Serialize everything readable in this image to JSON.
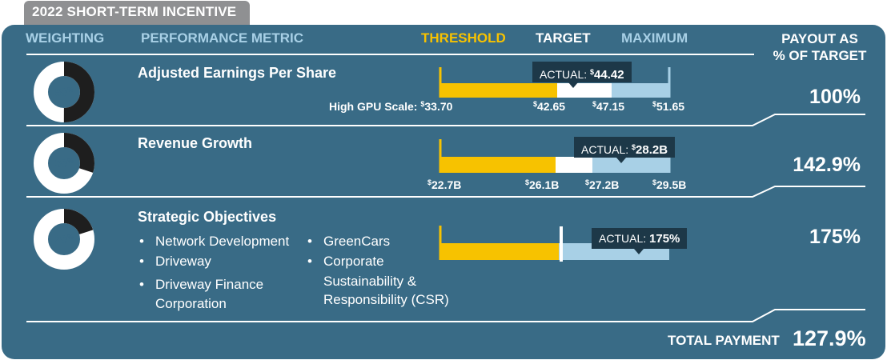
{
  "title": "2022 SHORT-TERM INCENTIVE",
  "headers": {
    "weighting": "WEIGHTING",
    "metric": "PERFORMANCE METRIC",
    "threshold": "THRESHOLD",
    "target": "TARGET",
    "maximum": "MAXIMUM",
    "payout_line1": "PAYOUT AS",
    "payout_line2": "% OF TARGET"
  },
  "colors": {
    "panel": "#396b86",
    "threshold": "#f7c200",
    "target": "#ffffff",
    "maximum": "#a8d0e6",
    "donut_dark": "#1e1e1e",
    "actual_box": "#1d3848"
  },
  "rows": [
    {
      "weight_label": "50",
      "metric": "Adjusted Earnings Per Share",
      "scale_label": "High GPU Scale:",
      "scale_value": "33.70",
      "actual_label": "ACTUAL:",
      "actual_value": "44.42",
      "payout": "100%"
    },
    {
      "weight_label": "30",
      "metric": "Revenue Growth",
      "actual_label": "ACTUAL:",
      "actual_value": "28.2B",
      "payout": "142.9%"
    },
    {
      "weight_label": "20",
      "metric": "Strategic Objectives",
      "bullets_left": [
        "Network Development",
        "Driveway",
        "Driveway Finance",
        "Corporation"
      ],
      "bullets_right": [
        "GreenCars",
        "Corporate",
        "Sustainability &",
        "Responsibility (CSR)"
      ],
      "actual_label": "ACTUAL:",
      "actual_value": "175%",
      "payout": "175%"
    }
  ],
  "total": {
    "label": "TOTAL PAYMENT",
    "value": "127.9%"
  },
  "chart_data": {
    "type": "bar",
    "series": [
      {
        "metric": "Adjusted Earnings Per Share",
        "weight": 50,
        "unit": "$",
        "threshold": 42.65,
        "target": 47.15,
        "maximum": 51.65,
        "actual": 44.42,
        "tick_labels": [
          "42.65",
          "47.15",
          "51.65"
        ],
        "payout_pct": 100
      },
      {
        "metric": "Revenue Growth",
        "weight": 30,
        "unit": "$",
        "threshold": 22.7,
        "target": 26.1,
        "target_high": 27.2,
        "maximum": 29.5,
        "actual": 28.2,
        "tick_labels": [
          "22.7B",
          "26.1B",
          "27.2B",
          "29.5B"
        ],
        "payout_pct": 142.9
      },
      {
        "metric": "Strategic Objectives",
        "weight": 20,
        "actual_pct": 175,
        "payout_pct": 175
      }
    ],
    "total_payout_pct": 127.9
  }
}
